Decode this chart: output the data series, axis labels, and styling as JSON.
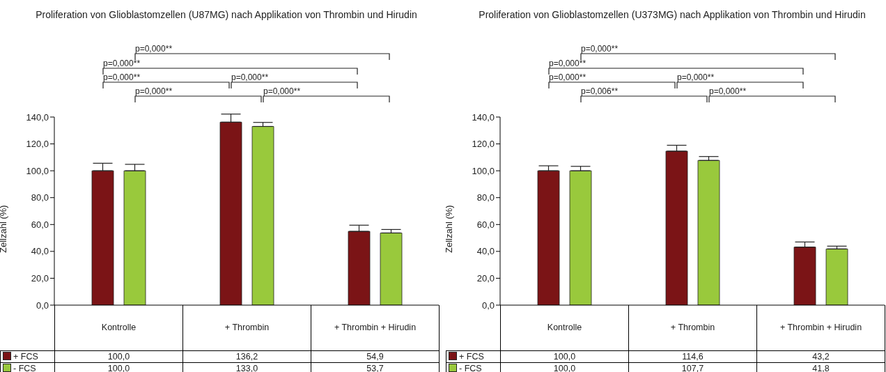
{
  "chart_data": [
    {
      "type": "bar",
      "title": "Proliferation von Glioblastomzellen (U87MG) nach Applikation von Thrombin und Hirudin",
      "ylabel": "Zellzahl (%)",
      "categories": [
        "Kontrolle",
        "+ Thrombin",
        "+ Thrombin + Hirudin"
      ],
      "series": [
        {
          "name": "+ FCS",
          "color": "#7b1416",
          "values": [
            100.0,
            136.2,
            54.9
          ],
          "value_labels": [
            "100,0",
            "136,2",
            "54,9"
          ],
          "errors": [
            [
              100.0,
              105.6
            ],
            [
              136.2,
              142.2
            ],
            [
              54.9,
              59.5
            ]
          ]
        },
        {
          "name": "- FCS",
          "color": "#99c93c",
          "values": [
            100.0,
            133.0,
            53.7
          ],
          "value_labels": [
            "100,0",
            "133,0",
            "53,7"
          ],
          "errors": [
            [
              100.0,
              104.8
            ],
            [
              133.0,
              136.0
            ],
            [
              53.7,
              56.3
            ]
          ]
        }
      ],
      "ylim": [
        0,
        140
      ],
      "yticks": [
        {
          "value": 0,
          "label": "0,0"
        },
        {
          "value": 20,
          "label": "20,0"
        },
        {
          "value": 40,
          "label": "40,0"
        },
        {
          "value": 60,
          "label": "60,0"
        },
        {
          "value": 80,
          "label": "80,0"
        },
        {
          "value": 100,
          "label": "100,0"
        },
        {
          "value": 120,
          "label": "120,0"
        },
        {
          "value": 140,
          "label": "140,0"
        }
      ],
      "legend": "bottom left",
      "annotations": [
        "p=0,000**",
        "p=0,000**",
        "p=0,000**",
        "p=0,000**",
        "p=0,000**",
        "p=0,000**"
      ]
    },
    {
      "type": "bar",
      "title": "Proliferation von Glioblastomzellen (U373MG) nach Applikation von Thrombin und Hirudin",
      "ylabel": "Zellzahl (%)",
      "categories": [
        "Kontrolle",
        "+ Thrombin",
        "+ Thrombin + Hirudin"
      ],
      "series": [
        {
          "name": "+ FCS",
          "color": "#7b1416",
          "values": [
            100.0,
            114.6,
            43.2
          ],
          "value_labels": [
            "100,0",
            "114,6",
            "43,2"
          ],
          "errors": [
            [
              100.0,
              103.7
            ],
            [
              114.6,
              119.0
            ],
            [
              43.2,
              47.0
            ]
          ]
        },
        {
          "name": "- FCS",
          "color": "#99c93c",
          "values": [
            100.0,
            107.7,
            41.8
          ],
          "value_labels": [
            "100,0",
            "107,7",
            "41,8"
          ],
          "errors": [
            [
              100.0,
              103.3
            ],
            [
              107.7,
              110.6
            ],
            [
              41.8,
              43.9
            ]
          ]
        }
      ],
      "ylim": [
        0,
        140
      ],
      "yticks": [
        {
          "value": 0,
          "label": "0,0"
        },
        {
          "value": 20,
          "label": "20,0"
        },
        {
          "value": 40,
          "label": "40,0"
        },
        {
          "value": 60,
          "label": "60,0"
        },
        {
          "value": 80,
          "label": "80,0"
        },
        {
          "value": 100,
          "label": "100,0"
        },
        {
          "value": 120,
          "label": "120,0"
        },
        {
          "value": 140,
          "label": "140,0"
        }
      ],
      "legend": "bottom left",
      "annotations": [
        "p=0,000**",
        "p=0,000**",
        "p=0,000**",
        "p=0,000**",
        "p=0,006**",
        "p=0,000**"
      ]
    }
  ]
}
